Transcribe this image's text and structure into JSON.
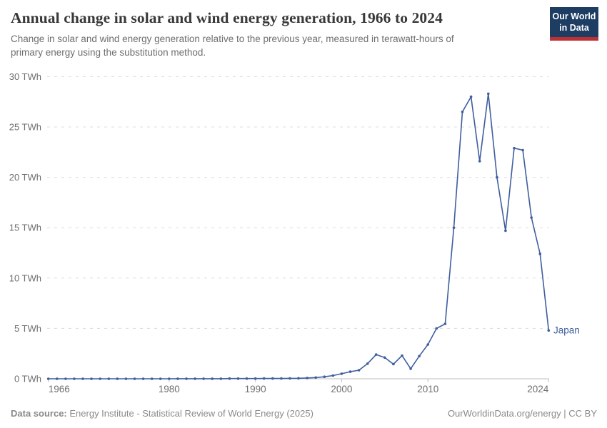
{
  "header": {
    "title": "Annual change in solar and wind energy generation, 1966 to 2024",
    "subtitle": "Change in solar and wind energy generation relative to the previous year, measured in terawatt-hours of primary energy using the substitution method.",
    "logo_line1": "Our World",
    "logo_line2": "in Data",
    "logo_bg": "#1D3D63",
    "logo_accent": "#BF3036"
  },
  "chart_data": {
    "type": "line",
    "title": "Annual change in solar and wind energy generation, 1966 to 2024",
    "ylabel": "",
    "xlabel": "",
    "unit": "TWh",
    "ylim": [
      0,
      30
    ],
    "xlim": [
      1966,
      2024
    ],
    "yticks": [
      0,
      5,
      10,
      15,
      20,
      25,
      30
    ],
    "ytick_format": "{v} TWh",
    "xticks": [
      1966,
      1980,
      1990,
      2000,
      2010,
      2024
    ],
    "grid": "horizontal-dashed",
    "legend_position": "end-of-line-label",
    "x": [
      1966,
      1967,
      1968,
      1969,
      1970,
      1971,
      1972,
      1973,
      1974,
      1975,
      1976,
      1977,
      1978,
      1979,
      1980,
      1981,
      1982,
      1983,
      1984,
      1985,
      1986,
      1987,
      1988,
      1989,
      1990,
      1991,
      1992,
      1993,
      1994,
      1995,
      1996,
      1997,
      1998,
      1999,
      2000,
      2001,
      2002,
      2003,
      2004,
      2005,
      2006,
      2007,
      2008,
      2009,
      2010,
      2011,
      2012,
      2013,
      2014,
      2015,
      2016,
      2017,
      2018,
      2019,
      2020,
      2021,
      2022,
      2023,
      2024
    ],
    "series": [
      {
        "name": "Japan",
        "color": "#3F5E9E",
        "values": [
          0,
          0,
          0,
          0,
          0,
          0,
          0,
          0,
          0,
          0,
          0,
          0,
          0,
          0,
          0,
          0.01,
          0.01,
          0.01,
          0.01,
          0.01,
          0.01,
          0.02,
          0.02,
          0.02,
          0.02,
          0.03,
          0.03,
          0.03,
          0.04,
          0.05,
          0.08,
          0.12,
          0.2,
          0.32,
          0.5,
          0.7,
          0.85,
          1.5,
          2.4,
          2.1,
          1.45,
          2.3,
          1.0,
          2.25,
          3.4,
          5.0,
          5.45,
          15.0,
          26.5,
          28.0,
          21.6,
          28.3,
          20.0,
          14.7,
          22.9,
          22.7,
          16.0,
          12.4,
          4.8
        ]
      }
    ],
    "colors": {
      "grid": "#DCDCDC",
      "axis": "#BDBDBD",
      "tick_text": "#6E6E6E"
    }
  },
  "footer": {
    "datasource_label": "Data source:",
    "datasource": "Energy Institute - Statistical Review of World Energy (2025)",
    "attribution": "OurWorldinData.org/energy | CC BY"
  }
}
